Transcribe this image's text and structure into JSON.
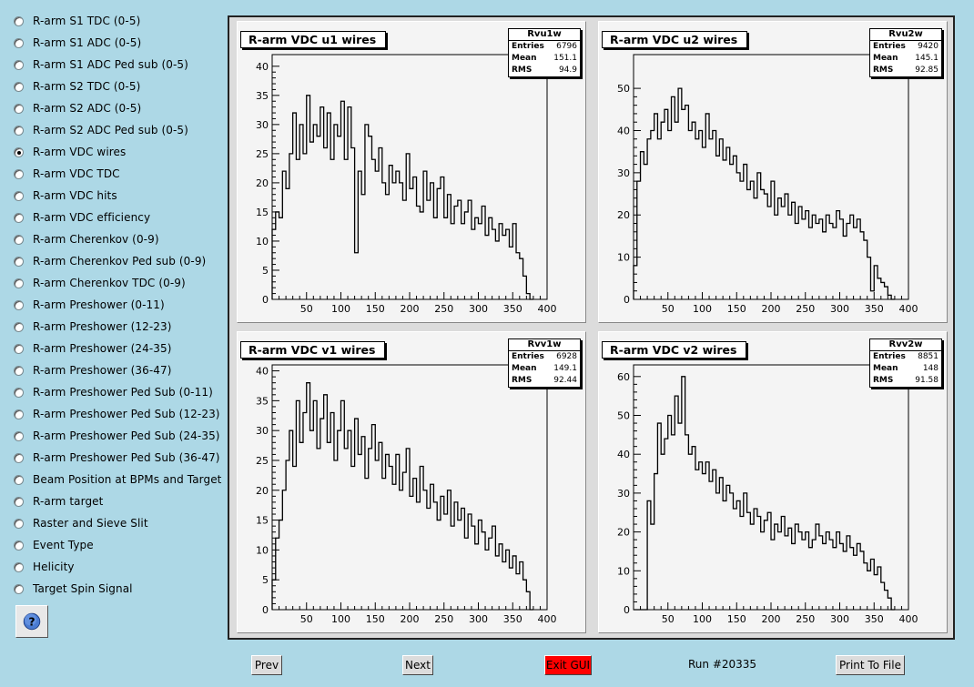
{
  "sidebar": {
    "items": [
      {
        "label": "R-arm S1 TDC (0-5)",
        "checked": false
      },
      {
        "label": "R-arm S1 ADC (0-5)",
        "checked": false
      },
      {
        "label": "R-arm S1 ADC Ped sub (0-5)",
        "checked": false
      },
      {
        "label": "R-arm S2 TDC (0-5)",
        "checked": false
      },
      {
        "label": "R-arm S2 ADC (0-5)",
        "checked": false
      },
      {
        "label": "R-arm S2 ADC Ped sub (0-5)",
        "checked": false
      },
      {
        "label": "R-arm VDC wires",
        "checked": true
      },
      {
        "label": "R-arm VDC TDC",
        "checked": false
      },
      {
        "label": "R-arm VDC hits",
        "checked": false
      },
      {
        "label": "R-arm VDC efficiency",
        "checked": false
      },
      {
        "label": "R-arm Cherenkov (0-9)",
        "checked": false
      },
      {
        "label": "R-arm Cherenkov Ped sub (0-9)",
        "checked": false
      },
      {
        "label": "R-arm Cherenkov TDC (0-9)",
        "checked": false
      },
      {
        "label": "R-arm Preshower (0-11)",
        "checked": false
      },
      {
        "label": "R-arm Preshower (12-23)",
        "checked": false
      },
      {
        "label": "R-arm Preshower (24-35)",
        "checked": false
      },
      {
        "label": "R-arm Preshower (36-47)",
        "checked": false
      },
      {
        "label": "R-arm Preshower Ped Sub (0-11)",
        "checked": false
      },
      {
        "label": "R-arm Preshower Ped Sub (12-23)",
        "checked": false
      },
      {
        "label": "R-arm Preshower Ped Sub (24-35)",
        "checked": false
      },
      {
        "label": "R-arm Preshower Ped Sub (36-47)",
        "checked": false
      },
      {
        "label": "Beam Position at BPMs and Target",
        "checked": false
      },
      {
        "label": "R-arm target",
        "checked": false
      },
      {
        "label": "Raster and Sieve Slit",
        "checked": false
      },
      {
        "label": "Event Type",
        "checked": false
      },
      {
        "label": "Helicity",
        "checked": false
      },
      {
        "label": "Target Spin Signal",
        "checked": false
      }
    ],
    "help_icon": "question-mark-icon"
  },
  "buttons": {
    "prev": "Prev",
    "next": "Next",
    "exit": "Exit GUI",
    "print": "Print To File",
    "exit_color": "#ff0000"
  },
  "run_label": "Run #20335",
  "colors": {
    "background": "#add8e6",
    "pad": "#f4f4f4",
    "line": "#000000"
  },
  "chart_data": [
    {
      "type": "line",
      "title": "R-arm VDC u1 wires",
      "stat_name": "Rvu1w",
      "stats": {
        "Entries": "6796",
        "Mean": "151.1",
        "RMS": "94.9"
      },
      "xlim": [
        0,
        400
      ],
      "ylim": [
        0,
        42
      ],
      "xticks": [
        50,
        100,
        150,
        200,
        250,
        300,
        350,
        400
      ],
      "yticks": [
        0,
        5,
        10,
        15,
        20,
        25,
        30,
        35,
        40
      ],
      "series": [
        {
          "x": [
            0,
            5,
            10,
            15,
            20,
            25,
            30,
            35,
            40,
            45,
            50,
            55,
            60,
            65,
            70,
            75,
            80,
            85,
            90,
            95,
            100,
            105,
            110,
            115,
            120,
            125,
            130,
            135,
            140,
            145,
            150,
            155,
            160,
            165,
            170,
            175,
            180,
            185,
            190,
            195,
            200,
            205,
            210,
            215,
            220,
            225,
            230,
            235,
            240,
            245,
            250,
            255,
            260,
            265,
            270,
            275,
            280,
            285,
            290,
            295,
            300,
            305,
            310,
            315,
            320,
            325,
            330,
            335,
            340,
            345,
            350,
            355,
            360,
            365,
            370,
            375
          ],
          "values": [
            12,
            15,
            14,
            22,
            19,
            25,
            32,
            24,
            30,
            25,
            35,
            27,
            30,
            28,
            33,
            26,
            32,
            24,
            30,
            28,
            34,
            24,
            33,
            26,
            8,
            22,
            18,
            30,
            28,
            24,
            22,
            26,
            20,
            18,
            23,
            20,
            22,
            20,
            17,
            25,
            19,
            21,
            16,
            15,
            22,
            17,
            20,
            14,
            19,
            21,
            14,
            18,
            13,
            16,
            17,
            13,
            15,
            17,
            12,
            14,
            13,
            16,
            11,
            14,
            12,
            10,
            13,
            11,
            12,
            9,
            13,
            8,
            7,
            4,
            1,
            0
          ]
        }
      ]
    },
    {
      "type": "line",
      "title": "R-arm VDC u2 wires",
      "stat_name": "Rvu2w",
      "stats": {
        "Entries": "9420",
        "Mean": "145.1",
        "RMS": "92.85"
      },
      "xlim": [
        0,
        400
      ],
      "ylim": [
        0,
        58
      ],
      "xticks": [
        50,
        100,
        150,
        200,
        250,
        300,
        350,
        400
      ],
      "yticks": [
        0,
        10,
        20,
        30,
        40,
        50
      ],
      "series": [
        {
          "x": [
            0,
            5,
            10,
            15,
            20,
            25,
            30,
            35,
            40,
            45,
            50,
            55,
            60,
            65,
            70,
            75,
            80,
            85,
            90,
            95,
            100,
            105,
            110,
            115,
            120,
            125,
            130,
            135,
            140,
            145,
            150,
            155,
            160,
            165,
            170,
            175,
            180,
            185,
            190,
            195,
            200,
            205,
            210,
            215,
            220,
            225,
            230,
            235,
            240,
            245,
            250,
            255,
            260,
            265,
            270,
            275,
            280,
            285,
            290,
            295,
            300,
            305,
            310,
            315,
            320,
            325,
            330,
            335,
            340,
            345,
            350,
            355,
            360,
            365,
            370,
            375
          ],
          "values": [
            8,
            28,
            35,
            32,
            38,
            40,
            44,
            38,
            42,
            45,
            40,
            48,
            42,
            50,
            45,
            46,
            40,
            42,
            38,
            40,
            36,
            44,
            38,
            40,
            34,
            38,
            33,
            36,
            32,
            34,
            30,
            28,
            32,
            26,
            28,
            24,
            30,
            26,
            25,
            22,
            28,
            20,
            24,
            22,
            25,
            20,
            23,
            18,
            22,
            19,
            21,
            17,
            20,
            18,
            19,
            16,
            20,
            18,
            17,
            21,
            19,
            15,
            18,
            20,
            17,
            19,
            16,
            14,
            10,
            2,
            8,
            5,
            4,
            3,
            1,
            0
          ]
        }
      ]
    },
    {
      "type": "line",
      "title": "R-arm VDC v1 wires",
      "stat_name": "Rvv1w",
      "stats": {
        "Entries": "6928",
        "Mean": "149.1",
        "RMS": "92.44"
      },
      "xlim": [
        0,
        400
      ],
      "ylim": [
        0,
        41
      ],
      "xticks": [
        50,
        100,
        150,
        200,
        250,
        300,
        350,
        400
      ],
      "yticks": [
        0,
        5,
        10,
        15,
        20,
        25,
        30,
        35,
        40
      ],
      "series": [
        {
          "x": [
            0,
            5,
            10,
            15,
            20,
            25,
            30,
            35,
            40,
            45,
            50,
            55,
            60,
            65,
            70,
            75,
            80,
            85,
            90,
            95,
            100,
            105,
            110,
            115,
            120,
            125,
            130,
            135,
            140,
            145,
            150,
            155,
            160,
            165,
            170,
            175,
            180,
            185,
            190,
            195,
            200,
            205,
            210,
            215,
            220,
            225,
            230,
            235,
            240,
            245,
            250,
            255,
            260,
            265,
            270,
            275,
            280,
            285,
            290,
            295,
            300,
            305,
            310,
            315,
            320,
            325,
            330,
            335,
            340,
            345,
            350,
            355,
            360,
            365,
            370,
            375
          ],
          "values": [
            5,
            12,
            15,
            20,
            25,
            30,
            24,
            35,
            28,
            33,
            38,
            30,
            35,
            27,
            32,
            36,
            28,
            33,
            25,
            30,
            35,
            27,
            30,
            24,
            32,
            26,
            29,
            22,
            27,
            31,
            25,
            28,
            22,
            26,
            24,
            21,
            26,
            20,
            23,
            27,
            19,
            22,
            18,
            24,
            20,
            17,
            21,
            18,
            15,
            19,
            16,
            20,
            14,
            18,
            15,
            17,
            12,
            16,
            14,
            11,
            15,
            13,
            10,
            12,
            14,
            9,
            11,
            8,
            10,
            7,
            9,
            6,
            8,
            5,
            3,
            0
          ]
        }
      ]
    },
    {
      "type": "line",
      "title": "R-arm VDC v2 wires",
      "stat_name": "Rvv2w",
      "stats": {
        "Entries": "8851",
        "Mean": "148",
        "RMS": "91.58"
      },
      "xlim": [
        0,
        400
      ],
      "ylim": [
        0,
        63
      ],
      "xticks": [
        50,
        100,
        150,
        200,
        250,
        300,
        350,
        400
      ],
      "yticks": [
        0,
        10,
        20,
        30,
        40,
        50,
        60
      ],
      "series": [
        {
          "x": [
            0,
            5,
            10,
            15,
            20,
            25,
            30,
            35,
            40,
            45,
            50,
            55,
            60,
            65,
            70,
            75,
            80,
            85,
            90,
            95,
            100,
            105,
            110,
            115,
            120,
            125,
            130,
            135,
            140,
            145,
            150,
            155,
            160,
            165,
            170,
            175,
            180,
            185,
            190,
            195,
            200,
            205,
            210,
            215,
            220,
            225,
            230,
            235,
            240,
            245,
            250,
            255,
            260,
            265,
            270,
            275,
            280,
            285,
            290,
            295,
            300,
            305,
            310,
            315,
            320,
            325,
            330,
            335,
            340,
            345,
            350,
            355,
            360,
            365,
            370,
            375
          ],
          "values": [
            0,
            0,
            0,
            0,
            28,
            22,
            35,
            48,
            40,
            44,
            50,
            45,
            55,
            48,
            60,
            45,
            40,
            42,
            36,
            38,
            35,
            38,
            33,
            36,
            30,
            34,
            28,
            32,
            30,
            26,
            28,
            24,
            30,
            25,
            22,
            26,
            24,
            20,
            23,
            25,
            18,
            22,
            20,
            24,
            19,
            21,
            17,
            22,
            20,
            18,
            20,
            16,
            18,
            22,
            19,
            17,
            20,
            18,
            16,
            20,
            17,
            15,
            19,
            16,
            14,
            17,
            15,
            12,
            10,
            13,
            9,
            11,
            7,
            5,
            3,
            0
          ]
        }
      ]
    }
  ]
}
